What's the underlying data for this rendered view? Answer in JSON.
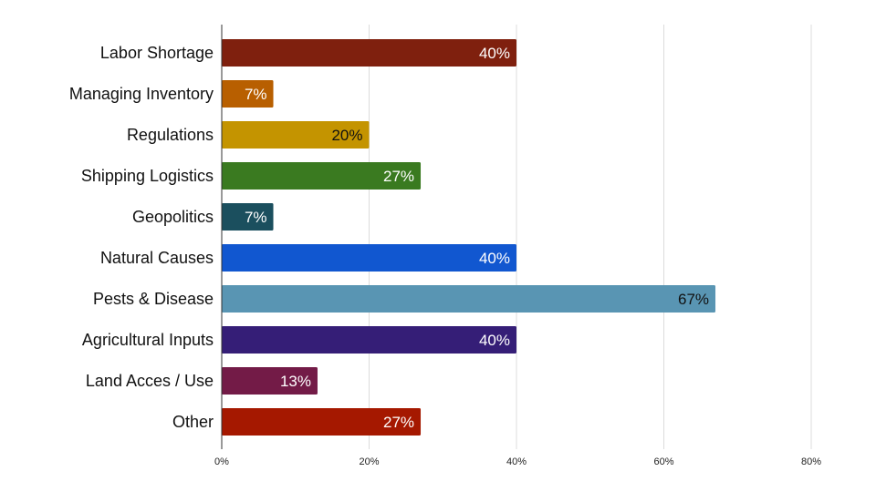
{
  "chart_data": {
    "type": "bar",
    "orientation": "horizontal",
    "title": "",
    "xlabel": "",
    "ylabel": "",
    "categories": [
      "Labor Shortage",
      "Managing Inventory",
      "Regulations",
      "Shipping Logistics",
      "Geopolitics",
      "Natural Causes",
      "Pests & Disease",
      "Agricultural Inputs",
      "Land Acces / Use",
      "Other"
    ],
    "values": [
      40,
      7,
      20,
      27,
      7,
      40,
      67,
      40,
      13,
      27
    ],
    "data_labels": [
      "40%",
      "7%",
      "20%",
      "27%",
      "7%",
      "40%",
      "67%",
      "40%",
      "13%",
      "27%"
    ],
    "colors": [
      "#7f200e",
      "#b85f00",
      "#c49400",
      "#3a7a20",
      "#1b4f5e",
      "#1157d0",
      "#5995b3",
      "#351e77",
      "#731b47",
      "#a51800"
    ],
    "label_colors": [
      "#ffffff",
      "#ffffff",
      "#111111",
      "#ffffff",
      "#ffffff",
      "#ffffff",
      "#111111",
      "#ffffff",
      "#ffffff",
      "#ffffff"
    ],
    "xlim": [
      0,
      80
    ],
    "xticks": [
      0,
      20,
      40,
      60,
      80
    ],
    "xtick_labels": [
      "0%",
      "20%",
      "40%",
      "60%",
      "80%"
    ],
    "grid": true,
    "legend": "none"
  }
}
